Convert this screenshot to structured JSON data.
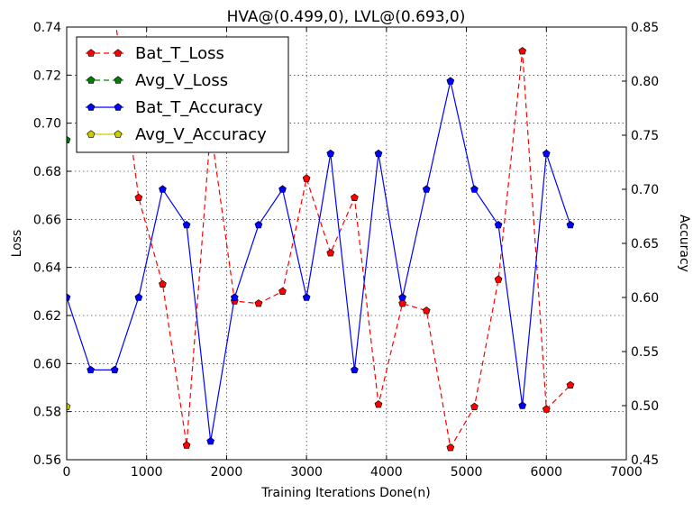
{
  "chart_data": {
    "type": "line",
    "title": "HVA@(0.499,0), LVL@(0.693,0)",
    "xlabel": "Training Iterations Done(n)",
    "ylabel_left": "Loss",
    "ylabel_right": "Accuracy",
    "xlim": [
      0,
      7000
    ],
    "ylim_left": [
      0.56,
      0.74
    ],
    "ylim_right": [
      0.45,
      0.85
    ],
    "x_ticks": [
      "0",
      "1000",
      "2000",
      "3000",
      "4000",
      "5000",
      "6000",
      "7000"
    ],
    "y_left_ticks": [
      "0.56",
      "0.58",
      "0.60",
      "0.62",
      "0.64",
      "0.66",
      "0.68",
      "0.70",
      "0.72",
      "0.74"
    ],
    "y_right_ticks": [
      "0.45",
      "0.50",
      "0.55",
      "0.60",
      "0.65",
      "0.70",
      "0.75",
      "0.80",
      "0.85"
    ],
    "grid": true,
    "legend_position": "top-left",
    "series": [
      {
        "name": "Bat_T_Loss",
        "axis": "left",
        "color": "#ff0000",
        "dash": true,
        "marker": "pentagon",
        "x": [
          0,
          300,
          600,
          900,
          1200,
          1500,
          1800,
          2100,
          2400,
          2700,
          3000,
          3300,
          3600,
          3900,
          4200,
          4500,
          4800,
          5100,
          5400,
          5700,
          6000,
          6300
        ],
        "y": [
          0.745,
          0.745,
          0.745,
          0.669,
          0.633,
          0.566,
          0.698,
          0.626,
          0.625,
          0.63,
          0.677,
          0.646,
          0.669,
          0.583,
          0.625,
          0.622,
          0.565,
          0.582,
          0.635,
          0.73,
          0.581,
          0.591
        ]
      },
      {
        "name": "Avg_V_Loss",
        "axis": "left",
        "color": "#008000",
        "dash": true,
        "marker": "pentagon",
        "x": [
          0
        ],
        "y": [
          0.693
        ]
      },
      {
        "name": "Bat_T_Accuracy",
        "axis": "right",
        "color": "#0000ff",
        "dash": false,
        "marker": "pentagon",
        "x": [
          0,
          300,
          600,
          900,
          1200,
          1500,
          1800,
          2100,
          2400,
          2700,
          3000,
          3300,
          3600,
          3900,
          4200,
          4500,
          4800,
          5100,
          5400,
          5700,
          6000,
          6300
        ],
        "y": [
          0.6,
          0.533,
          0.533,
          0.6,
          0.7,
          0.667,
          0.467,
          0.6,
          0.667,
          0.7,
          0.6,
          0.733,
          0.533,
          0.733,
          0.6,
          0.7,
          0.8,
          0.7,
          0.667,
          0.5,
          0.733,
          0.667
        ]
      },
      {
        "name": "Avg_V_Accuracy",
        "axis": "right",
        "color": "#cccc00",
        "dash": false,
        "marker": "pentagon",
        "x": [
          0
        ],
        "y": [
          0.499
        ]
      }
    ]
  }
}
